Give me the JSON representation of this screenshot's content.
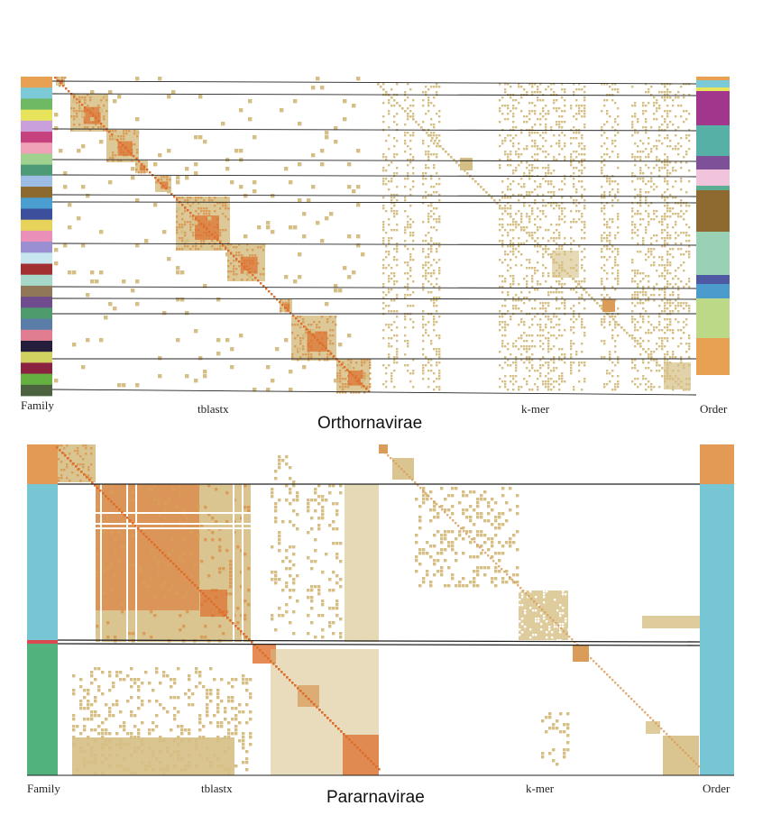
{
  "colors": {
    "tan": "#d6bf85",
    "orange": "#dd6e2c",
    "mid": "#d99c59",
    "line": "#222222"
  },
  "panels": {
    "top": {
      "title": "Orthornavirae",
      "labels": {
        "family": "Family",
        "tblastx": "tblastx",
        "kmer": "k-mer",
        "order": "Order"
      },
      "family_colors": [
        "#e8a053",
        "#7ccad8",
        "#6fb864",
        "#e7e35a",
        "#c9a0d9",
        "#c6427f",
        "#f0a3b8",
        "#9ed28e",
        "#4d9a76",
        "#9dbde5",
        "#8c6a2f",
        "#4a9ed0",
        "#3b4f9d",
        "#e7d25a",
        "#ea8fb8",
        "#9a8fd0",
        "#c7e6ef",
        "#a23030",
        "#a6d9c9",
        "#8f7757",
        "#6e4c8d",
        "#4e9c6e",
        "#5a7da8",
        "#e17d91",
        "#241d3b",
        "#d1d162",
        "#8b2340",
        "#64b040",
        "#4d6340"
      ],
      "order_colors": [
        "#e8a053",
        "#7ccad8",
        "#e7e35a",
        "#a2358c",
        "#56b0a6",
        "#7d5097",
        "#f2c4dc",
        "#5cad92",
        "#8f6a30",
        "#9ad0b4",
        "#4f59a3",
        "#4b9bcc",
        "#bcd987",
        "#e8a053"
      ]
    },
    "bottom": {
      "title": "Pararnavirae",
      "labels": {
        "family": "Family",
        "tblastx": "tblastx",
        "kmer": "k-mer",
        "order": "Order"
      },
      "family_colors": [
        "#e39a55",
        "#76c6d6",
        "#d9494f",
        "#51b27d"
      ],
      "order_colors": [
        "#e39a55",
        "#76c6d6"
      ]
    }
  }
}
